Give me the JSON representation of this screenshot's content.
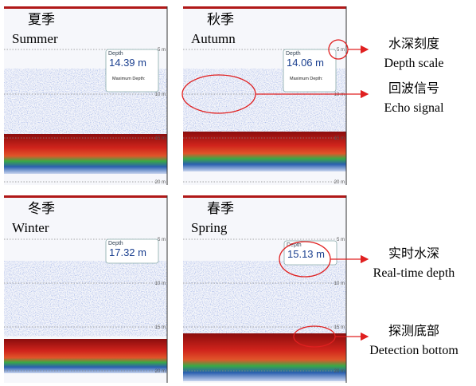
{
  "panels": [
    {
      "season_zh": "夏季",
      "season_en": "Summer",
      "depth_label": "Depth",
      "depth_value": "14.39 m",
      "max_depth_label": "Maximum Depth:"
    },
    {
      "season_zh": "秋季",
      "season_en": "Autumn",
      "depth_label": "Depth",
      "depth_value": "14.06 m",
      "max_depth_label": "Maximum Depth:"
    },
    {
      "season_zh": "冬季",
      "season_en": "Winter",
      "depth_label": "Depth",
      "depth_value": "17.32 m"
    },
    {
      "season_zh": "春季",
      "season_en": "Spring",
      "depth_label": "Depth",
      "depth_value": "15.13 m"
    }
  ],
  "depth_scale": [
    "5 m",
    "10 m",
    "15 m",
    "20 m"
  ],
  "annotations": [
    {
      "zh": "水深刻度",
      "en": "Depth scale"
    },
    {
      "zh": "回波信号",
      "en": "Echo signal"
    },
    {
      "zh": "实时水深",
      "en": "Real-time depth"
    },
    {
      "zh": "探测底部",
      "en": "Detection bottom"
    }
  ]
}
